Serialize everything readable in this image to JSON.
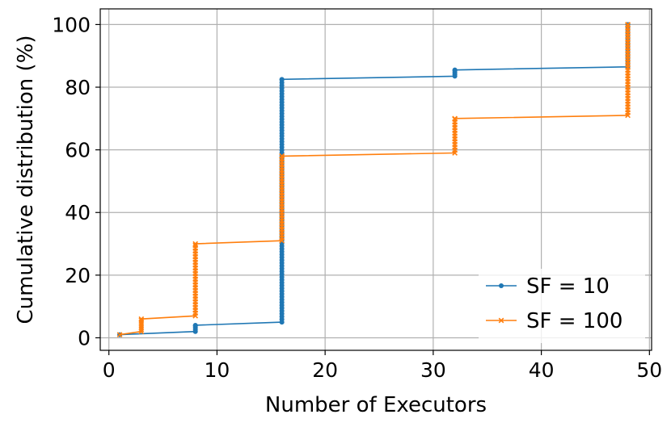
{
  "chart_data": {
    "type": "line",
    "xlabel": "Number of Executors",
    "ylabel": "Cumulative distribution (%)",
    "xlim": [
      -0.8,
      50.2
    ],
    "ylim": [
      -4,
      105
    ],
    "xticks": [
      0,
      10,
      20,
      30,
      40,
      50
    ],
    "yticks": [
      0,
      20,
      40,
      60,
      80,
      100
    ],
    "grid": true,
    "legend_position": "bottom-right",
    "series": [
      {
        "name": "SF = 10",
        "color": "#1f77b4",
        "marker": "dot",
        "x": [
          1,
          8,
          8,
          16,
          16,
          32,
          32,
          48,
          48
        ],
        "y": [
          1,
          2,
          4,
          5,
          82.5,
          83.5,
          85.5,
          86.5,
          100
        ]
      },
      {
        "name": "SF = 100",
        "color": "#ff7f0e",
        "marker": "x",
        "x": [
          1,
          3,
          3,
          8,
          8,
          16,
          16,
          32,
          32,
          48,
          48
        ],
        "y": [
          1,
          2,
          6,
          7,
          30,
          31,
          58,
          59,
          70,
          71,
          100
        ]
      }
    ]
  }
}
